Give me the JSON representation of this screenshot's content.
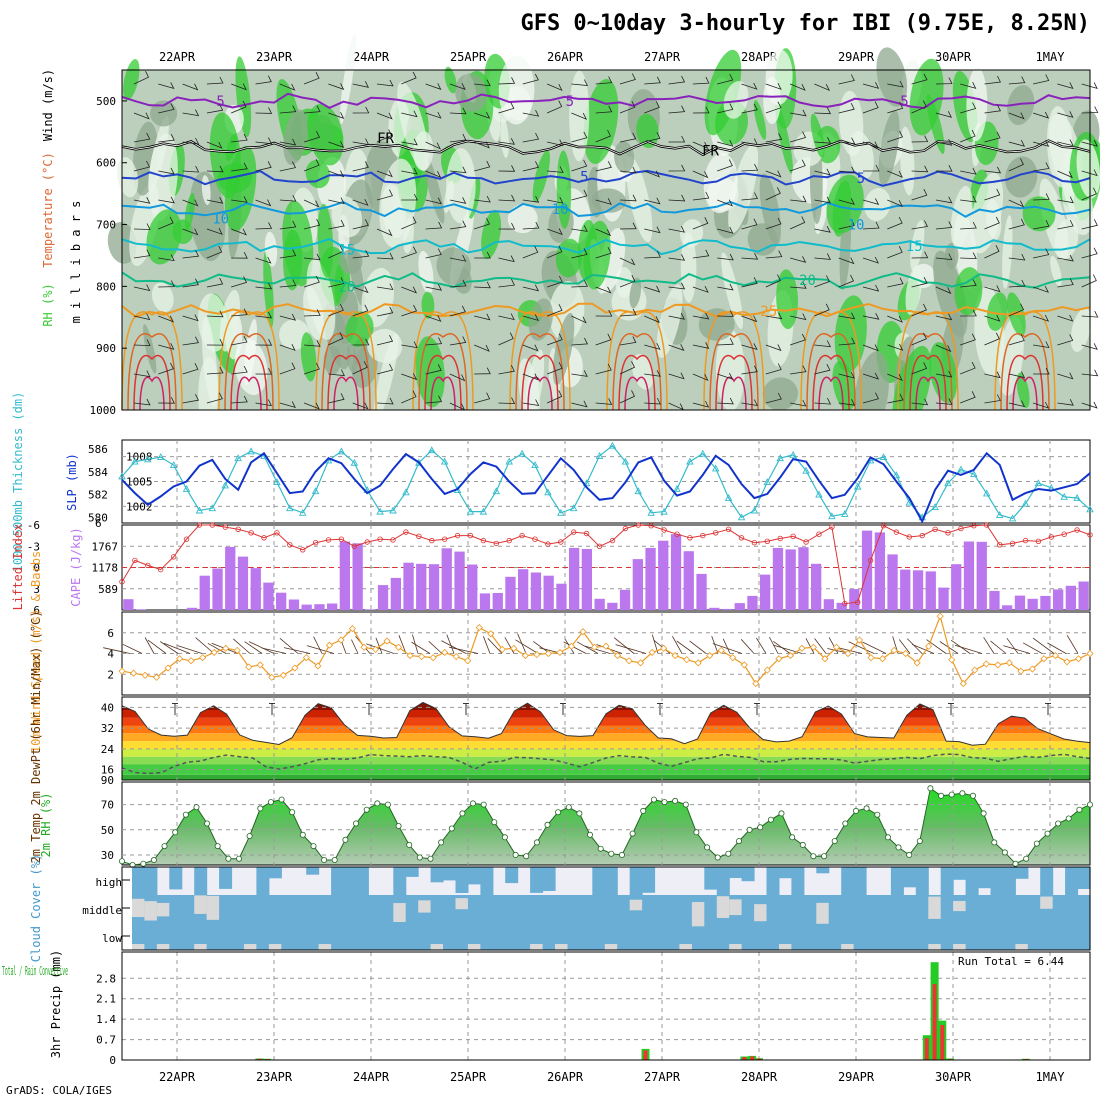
{
  "title": "GFS 0~10day 3-hourly for IBI (9.75E, 8.25N)",
  "credit": "GrADS: COLA/IGES",
  "dates": [
    "22APR",
    "23APR",
    "24APR",
    "25APR",
    "26APR",
    "27APR",
    "28APR",
    "29APR",
    "30APR",
    "1MAY"
  ],
  "colors": {
    "rh_green": "#33cc33",
    "rh_light": "#e8f4e8",
    "rh_mid": "#bccfbc",
    "rh_dark": "#8fa88f",
    "slp": "#1133cc",
    "thickness": "#33bbcc",
    "lifted": "#dd3333",
    "cape": "#bb77ee",
    "wind10": "#ee9922",
    "barb": "#553322",
    "rh2m": "#22cc22",
    "cloud_blue": "#6aaed6",
    "cloud_grey": "#d9d9d9",
    "cloud_bg": "#eeeef6",
    "precip_total": "#22cc22",
    "precip_conv": "#ee3333",
    "grid": "#999999"
  },
  "chart_data": [
    {
      "id": "upper_air",
      "type": "heatmap",
      "ylabel": "m i l l i b a r s",
      "side_labels": [
        "RH (%)",
        "Temperature (°C)",
        "Wind (m/s)"
      ],
      "yticks": [
        500,
        600,
        700,
        800,
        900,
        1000
      ],
      "ylim": [
        450,
        1000
      ],
      "contours": [
        {
          "label": "5",
          "color": "#8822bb",
          "pressure": 500
        },
        {
          "label": "FR",
          "color": "#000000",
          "pressure": 575
        },
        {
          "label": "5",
          "color": "#2244cc",
          "pressure": 625
        },
        {
          "label": "10",
          "color": "#1199dd",
          "pressure": 675
        },
        {
          "label": "15",
          "color": "#11bbcc",
          "pressure": 735
        },
        {
          "label": "20",
          "color": "#11bb88",
          "pressure": 790
        },
        {
          "label": "25",
          "color": "#ee9922",
          "pressure": 840
        }
      ],
      "contour_labels": [
        {
          "text": "5",
          "day": 0.45,
          "p": 500
        },
        {
          "text": "5",
          "day": 4.05,
          "p": 500
        },
        {
          "text": "5",
          "day": 7.5,
          "p": 500
        },
        {
          "text": "FR",
          "day": 2.15,
          "p": 560
        },
        {
          "text": "FR",
          "day": 5.5,
          "p": 580
        },
        {
          "text": "5",
          "day": 4.2,
          "p": 622
        },
        {
          "text": "5",
          "day": 7.05,
          "p": 625
        },
        {
          "text": "10",
          "day": 0.45,
          "p": 690
        },
        {
          "text": "10",
          "day": 3.95,
          "p": 675
        },
        {
          "text": "10",
          "day": 7.0,
          "p": 700
        },
        {
          "text": "15",
          "day": 1.75,
          "p": 740
        },
        {
          "text": "15",
          "day": 7.6,
          "p": 735
        },
        {
          "text": "20",
          "day": 1.75,
          "p": 800
        },
        {
          "text": "20",
          "day": 6.5,
          "p": 790
        },
        {
          "text": "25",
          "day": 6.1,
          "p": 840
        }
      ]
    },
    {
      "id": "slp_thickness",
      "type": "line",
      "label_left": "1000-500mb Thickness (dm)",
      "label_right": "SLP (mb)",
      "left_ticks": [
        580,
        582,
        584,
        586
      ],
      "right_ticks": [
        1002,
        1005,
        1008
      ],
      "ylim_slp": [
        1000,
        1010
      ],
      "ylim_thk": [
        579.5,
        586.8
      ],
      "series": [
        {
          "name": "SLP (mb)",
          "values": [
            1005.2,
            1003.6,
            1002.2,
            1003.2,
            1004.4,
            1005.0,
            1006.9,
            1007.6,
            1005.3,
            1004.0,
            1007.3,
            1008.4,
            1006.0,
            1003.6,
            1003.8,
            1006.2,
            1007.8,
            1007.2,
            1005.3,
            1003.6,
            1004.5,
            1006.5,
            1008.3,
            1007.3,
            1005.3,
            1003.5,
            1004.1,
            1005.9,
            1007.3,
            1006.8,
            1005.0,
            1003.5,
            1003.6,
            1005.7,
            1007.8,
            1006.4,
            1004.3,
            1002.8,
            1003.0,
            1004.9,
            1007.3,
            1007.9,
            1005.1,
            1003.3,
            1003.8,
            1005.8,
            1008.1,
            1007.0,
            1004.7,
            1003.0,
            1003.5,
            1005.5,
            1007.7,
            1007.4,
            1005.1,
            1003.0,
            1003.4,
            1005.4,
            1007.9,
            1007.1,
            1005.0,
            1003.0,
            1000.2,
            1004.0,
            1006.3,
            1005.8,
            1006.4,
            1008.4,
            1007.0,
            1002.8,
            1003.6,
            1004.1,
            1003.9,
            1004.3,
            1004.7,
            1006.0
          ]
        },
        {
          "name": "Thickness (dm)",
          "values": [
            583.6,
            584.9,
            585.1,
            585.3,
            584.6,
            582.5,
            580.6,
            580.8,
            582.8,
            585.2,
            585.8,
            585.4,
            583.1,
            580.8,
            580.4,
            582.3,
            585.0,
            585.8,
            584.8,
            582.4,
            580.5,
            580.6,
            582.2,
            584.8,
            585.9,
            584.9,
            582.4,
            580.5,
            580.5,
            582.3,
            584.9,
            585.6,
            584.6,
            582.2,
            580.4,
            580.8,
            583.0,
            585.4,
            586.3,
            584.9,
            582.3,
            580.4,
            580.5,
            582.5,
            584.9,
            585.6,
            584.3,
            581.7,
            580.0,
            580.6,
            583.1,
            585.2,
            585.5,
            584.1,
            582.0,
            580.1,
            580.3,
            582.7,
            585.0,
            585.3,
            583.7,
            581.3,
            580.0,
            580.9,
            583.0,
            584.2,
            583.8,
            582.1,
            580.2,
            579.9,
            581.2,
            583.0,
            582.6,
            581.8,
            581.7,
            580.7
          ]
        }
      ]
    },
    {
      "id": "cape_lifted",
      "type": "bar",
      "label_left": "Lifted Index",
      "label_right": "CAPE (J/kg)",
      "left_ticks": [
        "-6",
        "-3",
        "0",
        "3",
        "6"
      ],
      "right_ticks": [
        589,
        1178,
        1767
      ],
      "ylim_cape": [
        0,
        2356
      ],
      "ylim_li": [
        -6,
        6
      ],
      "cape_values": [
        300,
        20,
        0,
        0,
        0,
        60,
        950,
        1150,
        1750,
        1480,
        1160,
        760,
        480,
        290,
        150,
        160,
        180,
        1900,
        1850,
        20,
        690,
        890,
        1310,
        1280,
        1270,
        1710,
        1620,
        1260,
        460,
        470,
        920,
        1130,
        1040,
        950,
        730,
        1720,
        1690,
        310,
        200,
        560,
        1410,
        1720,
        1920,
        2100,
        1630,
        1000,
        60,
        30,
        190,
        390,
        980,
        1720,
        1680,
        1740,
        1280,
        300,
        200,
        580,
        2200,
        2150,
        1540,
        1120,
        1100,
        1070,
        620,
        1270,
        1900,
        1890,
        530,
        130,
        400,
        310,
        390,
        570,
        670,
        790
      ],
      "li_values": [
        2.0,
        -1.0,
        -0.3,
        0.3,
        -1.5,
        -4.0,
        -6.0,
        -6.0,
        -5.7,
        -5.4,
        -4.9,
        -4.2,
        -4.9,
        -3.2,
        -2.5,
        -3.5,
        -3.9,
        -4.0,
        -3.0,
        -3.6,
        -4.0,
        -3.9,
        -5.0,
        -4.4,
        -3.8,
        -4.0,
        -4.5,
        -4.5,
        -3.8,
        -3.4,
        -3.8,
        -4.5,
        -4.0,
        -3.3,
        -3.6,
        -5.0,
        -4.8,
        -3.0,
        -3.8,
        -5.5,
        -6.0,
        -5.9,
        -5.3,
        -4.7,
        -4.2,
        -4.5,
        -4.9,
        -5.4,
        -4.2,
        -3.5,
        -3.7,
        -4.1,
        -4.4,
        -3.6,
        -4.7,
        -5.7,
        5.1,
        4.9,
        -1.0,
        -5.9,
        -5.0,
        -4.3,
        -4.5,
        -5.4,
        -4.9,
        -5.5,
        -5.9,
        -6.0,
        -3.2,
        -3.4,
        -3.8,
        -3.7,
        -4.3,
        -4.7,
        -5.3,
        -4.6
      ]
    },
    {
      "id": "wind10m",
      "type": "line",
      "label": "10m Wind Speed (m/s) & Barbs",
      "yticks": [
        2,
        4,
        6
      ],
      "ylim": [
        0,
        8
      ],
      "values": [
        2.3,
        2.1,
        1.9,
        1.7,
        2.6,
        3.5,
        3.3,
        3.6,
        4.1,
        4.5,
        4.3,
        2.7,
        2.9,
        1.7,
        1.9,
        2.6,
        3.6,
        2.8,
        4.8,
        5.3,
        6.4,
        4.6,
        4.4,
        5.2,
        4.6,
        3.8,
        3.7,
        3.6,
        4.1,
        3.7,
        3.3,
        6.5,
        5.9,
        4.4,
        4.5,
        3.8,
        3.9,
        4.0,
        4.1,
        4.7,
        6.1,
        4.6,
        4.7,
        3.8,
        3.3,
        3.1,
        4.1,
        4.5,
        3.8,
        3.4,
        3.1,
        3.8,
        4.3,
        3.6,
        2.9,
        1.1,
        2.4,
        3.5,
        3.8,
        4.5,
        4.6,
        3.5,
        4.6,
        4.0,
        5.3,
        3.6,
        3.5,
        4.3,
        4.0,
        3.1,
        4.7,
        7.6,
        3.4,
        1.1,
        2.4,
        3.0,
        2.9,
        3.1,
        2.3,
        2.5,
        3.5,
        3.8,
        3.2,
        3.5,
        4.0
      ]
    },
    {
      "id": "temp_dewpt",
      "type": "area",
      "label": "2m Temp 2m DewPt (6hr Min/Max) (°C)",
      "yticks": [
        16,
        24,
        32,
        40
      ],
      "extra_tick": "90",
      "ylim": [
        12,
        44
      ],
      "temp_values": [
        40.6,
        38.4,
        31.7,
        29.3,
        28.9,
        29.3,
        38.0,
        40.6,
        37.4,
        29.4,
        27.3,
        26.5,
        25.7,
        28.3,
        37.0,
        41.4,
        39.8,
        33.3,
        29.2,
        28.9,
        28.2,
        28.4,
        38.7,
        41.9,
        39.6,
        32.5,
        29.0,
        28.7,
        28.1,
        29.9,
        38.6,
        41.6,
        38.2,
        31.3,
        29.1,
        28.8,
        29.1,
        37.5,
        40.8,
        39.5,
        33.1,
        28.2,
        27.9,
        26.0,
        27.8,
        37.8,
        40.8,
        38.1,
        32.0,
        27.6,
        26.7,
        27.0,
        28.7,
        38.2,
        40.5,
        37.4,
        29.9,
        28.6,
        28.4,
        28.2,
        37.0,
        41.3,
        39.1,
        27.0,
        26.8,
        25.4,
        25.8,
        33.7,
        36.6,
        35.9,
        31.8,
        29.8,
        27.8,
        27.0,
        26.4
      ],
      "dewpt_values": [
        16.6,
        14.9,
        14.5,
        14.8,
        17.3,
        18.9,
        19.3,
        20.7,
        21.6,
        21.0,
        20.5,
        17.1,
        16.2,
        17.1,
        18.3,
        19.8,
        20.3,
        20.0,
        20.5,
        21.8,
        21.4,
        21.2,
        21.0,
        21.4,
        21.0,
        20.7,
        18.8,
        16.3,
        18.8,
        19.2,
        20.7,
        20.6,
        20.2,
        19.7,
        18.5,
        17.1,
        18.7,
        20.5,
        21.4,
        20.9,
        20.7,
        18.5,
        17.3,
        18.7,
        20.2,
        20.5,
        21.9,
        21.1,
        20.7,
        19.1,
        19.0,
        19.9,
        20.3,
        20.2,
        20.2,
        19.7,
        18.5,
        19.2,
        19.9,
        20.2,
        20.7,
        20.2,
        21.4,
        22.0,
        21.8,
        20.6,
        20.4,
        19.2,
        20.2,
        21.1,
        20.7,
        21.4,
        21.9,
        21.0,
        20.3
      ]
    },
    {
      "id": "rh2m",
      "type": "area",
      "label": "2m RH (%)",
      "yticks": [
        30,
        50,
        70
      ],
      "ylim": [
        22,
        88
      ],
      "values": [
        25,
        22,
        23,
        26,
        37,
        48,
        62,
        68,
        55,
        37,
        27,
        27,
        45,
        67,
        72,
        74,
        64,
        46,
        37,
        26,
        26,
        42,
        55,
        66,
        71,
        70,
        53,
        38,
        28,
        27,
        40,
        51,
        63,
        71,
        70,
        56,
        44,
        30,
        29,
        40,
        54,
        64,
        68,
        63,
        46,
        35,
        31,
        30,
        47,
        65,
        74,
        72,
        73,
        70,
        48,
        36,
        28,
        31,
        41,
        50,
        52,
        58,
        63,
        44,
        38,
        29,
        29,
        41,
        55,
        65,
        67,
        62,
        44,
        36,
        30,
        41,
        83,
        77,
        78,
        79,
        77,
        63,
        40,
        32,
        23,
        27,
        39,
        47,
        55,
        59,
        66,
        70
      ]
    },
    {
      "id": "cloud_cover",
      "type": "heatmap",
      "label": "Cloud Cover (%)",
      "levels": [
        "high",
        "middle",
        "low"
      ]
    },
    {
      "id": "precip",
      "type": "bar",
      "label_left": "3hr Precip (mm)",
      "side_label": "Total / Rain Convective",
      "yticks": [
        "0",
        "0.7",
        "1.4",
        "2.1",
        "2.8"
      ],
      "ylim": [
        0,
        3.7
      ],
      "run_total": "Run Total = 6.44",
      "bars": [
        {
          "day": 0.85,
          "total": 0.05,
          "conv": 0.04
        },
        {
          "day": 0.93,
          "total": 0.04,
          "conv": 0.03
        },
        {
          "day": 4.83,
          "total": 0.38,
          "conv": 0.33
        },
        {
          "day": 5.85,
          "total": 0.12,
          "conv": 0.1
        },
        {
          "day": 5.93,
          "total": 0.14,
          "conv": 0.12
        },
        {
          "day": 6.0,
          "total": 0.06,
          "conv": 0.05
        },
        {
          "day": 7.73,
          "total": 0.85,
          "conv": 0.75
        },
        {
          "day": 7.81,
          "total": 3.35,
          "conv": 2.6
        },
        {
          "day": 7.89,
          "total": 1.35,
          "conv": 1.2
        },
        {
          "day": 7.97,
          "total": 0.05,
          "conv": 0.03
        },
        {
          "day": 8.75,
          "total": 0.04,
          "conv": 0.03
        }
      ]
    }
  ]
}
